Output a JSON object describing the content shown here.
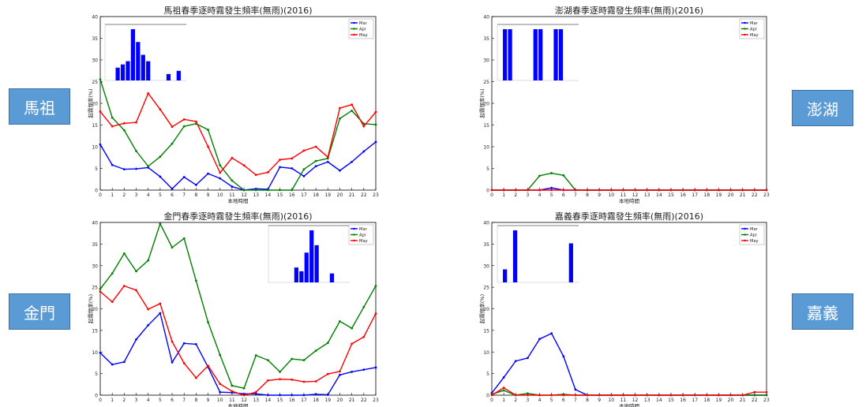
{
  "region_labels": {
    "mazu": "馬祖",
    "penghu": "澎湖",
    "kinmen": "金門",
    "chiayi": "嘉義"
  },
  "chart_data": [
    {
      "id": "mazu",
      "type": "line",
      "title": "馬祖春季逐時霧發生頻率(無雨)(2016)",
      "xlabel": "本地時間",
      "ylabel": "起霧頻率(%)",
      "x": [
        0,
        1,
        2,
        3,
        4,
        5,
        6,
        7,
        8,
        9,
        10,
        11,
        12,
        13,
        14,
        15,
        16,
        17,
        18,
        19,
        20,
        21,
        22,
        23
      ],
      "ylim": [
        0,
        40
      ],
      "yticks": [
        0,
        5,
        10,
        15,
        20,
        25,
        30,
        35,
        40
      ],
      "legend": "top-right",
      "series": [
        {
          "name": "Mar",
          "color": "#0000ff",
          "values": [
            10.5,
            5.8,
            4.8,
            4.9,
            5.2,
            3.1,
            0.3,
            3.0,
            1.2,
            3.8,
            2.7,
            0.8,
            0,
            0.3,
            0.2,
            5.3,
            5.0,
            3.2,
            5.5,
            6.5,
            4.5,
            6.5,
            8.9,
            11.1
          ]
        },
        {
          "name": "Apr",
          "color": "#008000",
          "values": [
            25.5,
            16.7,
            13.8,
            9.0,
            5.5,
            7.7,
            10.7,
            14.7,
            15.3,
            13.9,
            5.7,
            2.2,
            0,
            0,
            0,
            0,
            0,
            4.8,
            6.7,
            7.3,
            16.5,
            18.3,
            15.3,
            15.1
          ]
        },
        {
          "name": "May",
          "color": "#ff0000",
          "values": [
            18.1,
            14.7,
            15.4,
            15.6,
            22.3,
            18.6,
            14.6,
            16.3,
            15.8,
            10.0,
            4.0,
            7.4,
            5.7,
            3.5,
            4.1,
            7.0,
            7.3,
            9.1,
            10.0,
            7.6,
            18.9,
            19.7,
            14.7,
            18.0
          ]
        }
      ],
      "inset": {
        "bars": [
          0,
          0,
          2,
          2.5,
          3,
          8,
          6,
          4,
          3,
          0,
          0,
          0,
          1,
          0,
          1.5,
          0
        ]
      }
    },
    {
      "id": "penghu",
      "type": "line",
      "title": "澎湖春季逐時霧發生頻率(無雨)(2016)",
      "xlabel": "本地時間",
      "ylabel": "起霧頻率(%)",
      "x": [
        0,
        1,
        2,
        3,
        4,
        5,
        6,
        7,
        8,
        9,
        10,
        11,
        12,
        13,
        14,
        15,
        16,
        17,
        18,
        19,
        20,
        21,
        22,
        23
      ],
      "ylim": [
        0,
        40
      ],
      "yticks": [
        0,
        5,
        10,
        15,
        20,
        25,
        30,
        35,
        40
      ],
      "legend": "top-right",
      "series": [
        {
          "name": "Mar",
          "color": "#0000ff",
          "values": [
            0,
            0,
            0,
            0,
            0,
            0.5,
            0,
            0,
            0,
            0,
            0,
            0,
            0,
            0,
            0,
            0,
            0,
            0,
            0,
            0,
            0,
            0,
            0,
            0
          ]
        },
        {
          "name": "Apr",
          "color": "#008000",
          "values": [
            0,
            0,
            0,
            0,
            3.3,
            3.9,
            3.4,
            0,
            0,
            0,
            0,
            0,
            0,
            0,
            0,
            0,
            0,
            0,
            0,
            0,
            0,
            0,
            0,
            0
          ]
        },
        {
          "name": "May",
          "color": "#ff0000",
          "values": [
            0,
            0,
            0,
            0,
            0,
            0,
            0,
            0,
            0,
            0,
            0,
            0,
            0,
            0,
            0,
            0,
            0,
            0,
            0,
            0,
            0,
            0,
            0,
            0
          ]
        }
      ],
      "inset": {
        "bars": [
          0,
          1,
          1,
          0,
          0,
          0,
          0,
          1,
          1,
          0,
          0,
          1,
          1,
          0,
          0,
          0
        ]
      }
    },
    {
      "id": "kinmen",
      "type": "line",
      "title": "金門春季逐時霧發生頻率(無雨)(2016)",
      "xlabel": "本地時間",
      "ylabel": "起霧頻率(%)",
      "x": [
        0,
        1,
        2,
        3,
        4,
        5,
        6,
        7,
        8,
        9,
        10,
        11,
        12,
        13,
        14,
        15,
        16,
        17,
        18,
        19,
        20,
        21,
        22,
        23
      ],
      "ylim": [
        0,
        40
      ],
      "yticks": [
        0,
        5,
        10,
        15,
        20,
        25,
        30,
        35,
        40
      ],
      "legend": "top-right",
      "series": [
        {
          "name": "Mar",
          "color": "#0000ff",
          "values": [
            9.8,
            7.1,
            7.7,
            12.9,
            16.2,
            19.0,
            7.6,
            12.0,
            11.8,
            6.5,
            0.7,
            0.6,
            0.3,
            0.3,
            0,
            0,
            0,
            0,
            0.2,
            0.1,
            4.7,
            5.4,
            5.9,
            6.4
          ]
        },
        {
          "name": "Apr",
          "color": "#008000",
          "values": [
            24.6,
            28.2,
            32.8,
            28.7,
            31.2,
            39.7,
            34.2,
            36.3,
            26.5,
            16.9,
            9.3,
            2.2,
            1.6,
            9.2,
            8.1,
            5.4,
            8.4,
            8.1,
            10.3,
            12.1,
            17.1,
            15.5,
            20.4,
            25.3
          ]
        },
        {
          "name": "May",
          "color": "#ff0000",
          "values": [
            24.0,
            21.6,
            25.3,
            24.3,
            19.9,
            21.2,
            12.4,
            7.4,
            4.0,
            6.8,
            2.6,
            0.9,
            0,
            0.7,
            3.4,
            3.7,
            3.6,
            3.1,
            3.2,
            4.9,
            5.5,
            11.9,
            13.5,
            18.9
          ]
        }
      ],
      "inset": {
        "bars": [
          0,
          0,
          0,
          0,
          0,
          2,
          1.5,
          4,
          7,
          5,
          0,
          0,
          1.2,
          0,
          0,
          0
        ]
      }
    },
    {
      "id": "chiayi",
      "type": "line",
      "title": "嘉義春季逐時霧發生頻率(無雨)(2016)",
      "xlabel": "本地時間",
      "ylabel": "起霧頻率(%)",
      "x": [
        0,
        1,
        2,
        3,
        4,
        5,
        6,
        7,
        8,
        9,
        10,
        11,
        12,
        13,
        14,
        15,
        16,
        17,
        18,
        19,
        20,
        21,
        22,
        23
      ],
      "ylim": [
        0,
        40
      ],
      "yticks": [
        0,
        5,
        10,
        15,
        20,
        25,
        30,
        35,
        40
      ],
      "legend": "top-right",
      "series": [
        {
          "name": "Mar",
          "color": "#0000ff",
          "values": [
            0.5,
            4.1,
            7.9,
            8.6,
            13.0,
            14.3,
            9.0,
            1.3,
            0,
            0,
            0,
            0,
            0,
            0,
            0,
            0,
            0,
            0,
            0,
            0,
            0,
            0,
            0,
            0
          ]
        },
        {
          "name": "Apr",
          "color": "#008000",
          "values": [
            0.2,
            1.1,
            0,
            0.4,
            0,
            0,
            0.2,
            0,
            0,
            0,
            0,
            0,
            0,
            0,
            0,
            0,
            0,
            0,
            0,
            0,
            0,
            0,
            0,
            0
          ]
        },
        {
          "name": "May",
          "color": "#ff0000",
          "values": [
            0,
            1.7,
            0,
            0,
            0,
            0,
            0,
            0,
            0,
            0,
            0,
            0,
            0,
            0,
            0,
            0,
            0,
            0,
            0,
            0,
            0,
            0,
            0.7,
            0.7
          ]
        }
      ],
      "inset": {
        "bars": [
          0,
          1,
          0,
          4,
          0,
          0,
          0,
          0,
          0,
          0,
          0,
          0,
          0,
          0,
          3,
          0
        ]
      }
    }
  ]
}
